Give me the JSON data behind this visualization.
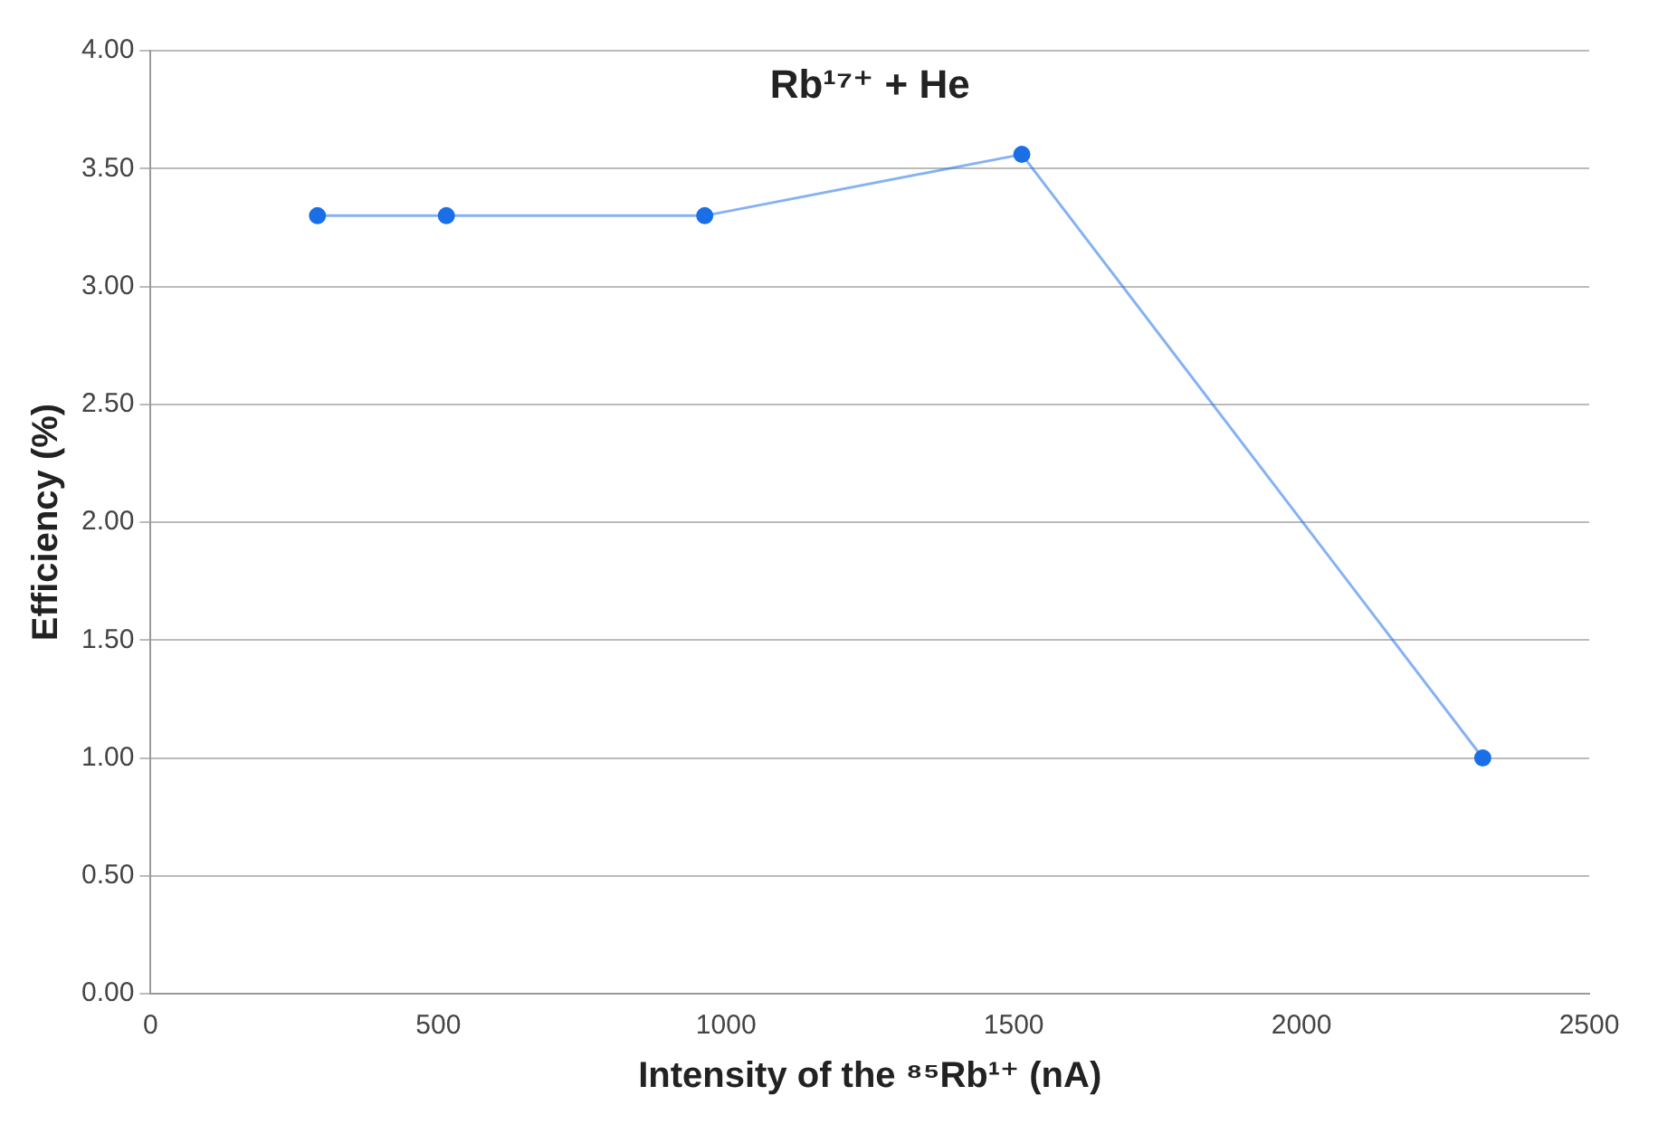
{
  "chart_data": {
    "type": "line",
    "title": "Rb¹⁷⁺ + He",
    "xlabel": "Intensity of the ⁸⁵Rb¹⁺ (nA)",
    "ylabel": "Efficiency (%)",
    "x": [
      290,
      514,
      963,
      1514,
      2315
    ],
    "series": [
      {
        "color": "#1a6fe6",
        "values": [
          3.3,
          3.3,
          3.3,
          3.56,
          1.0
        ]
      }
    ],
    "xlim": [
      0,
      2500
    ],
    "xticks": [
      0,
      500,
      1000,
      1500,
      2000,
      2500
    ],
    "ylim": [
      0,
      4
    ],
    "yticks": [
      {
        "value": 0,
        "label": "0.00"
      },
      {
        "value": 0.5,
        "label": "0.50"
      },
      {
        "value": 1,
        "label": "1.00"
      },
      {
        "value": 1.5,
        "label": "1.50"
      },
      {
        "value": 2,
        "label": "2.00"
      },
      {
        "value": 2.5,
        "label": "2.50"
      },
      {
        "value": 3,
        "label": "3.00"
      },
      {
        "value": 3.5,
        "label": "3.50"
      },
      {
        "value": 4,
        "label": "4.00"
      }
    ],
    "grid": "y",
    "marker": "circle",
    "line_style": "solid",
    "legend": false
  }
}
